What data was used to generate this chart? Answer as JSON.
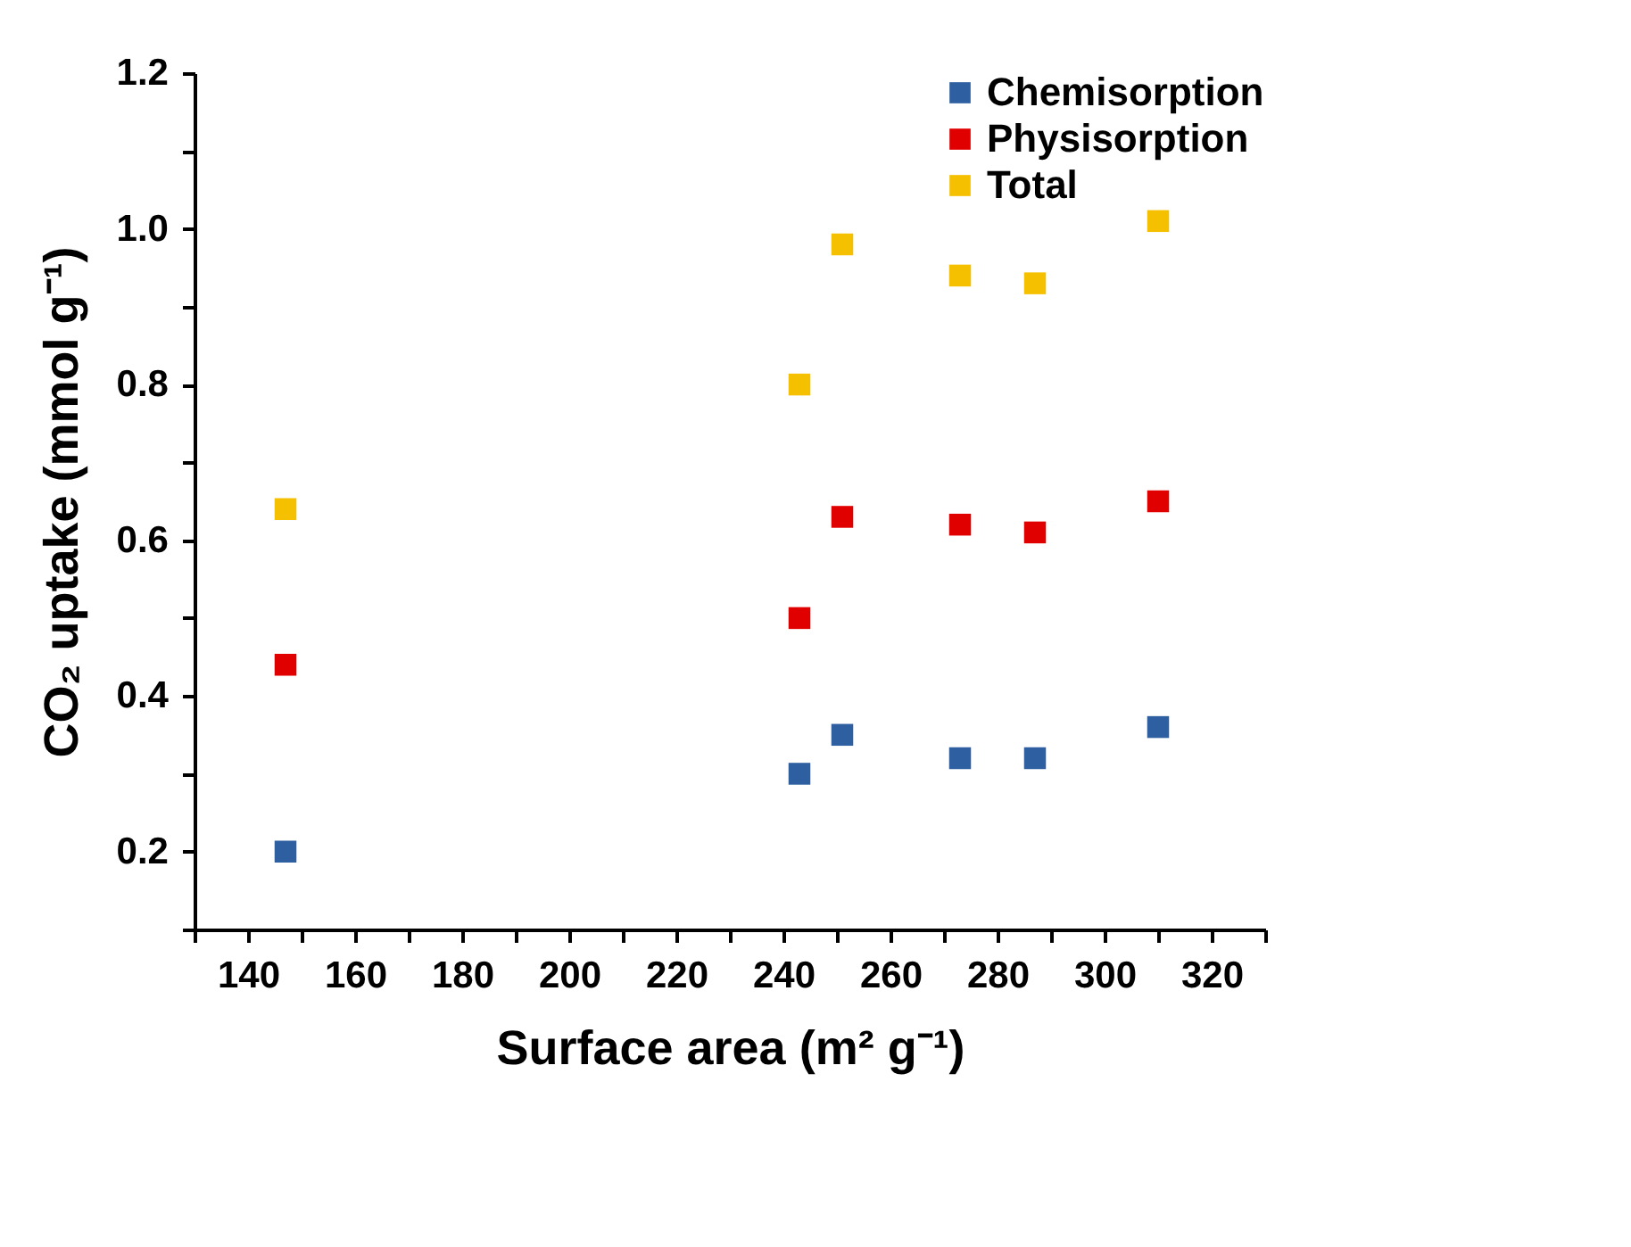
{
  "chart_data": {
    "type": "scatter",
    "xlabel": "Surface area (m² g⁻¹)",
    "ylabel": "CO₂ uptake (mmol g⁻¹)",
    "x": [
      147,
      243,
      251,
      273,
      287,
      310
    ],
    "series": [
      {
        "name": "Chemisorption",
        "color": "#2e5fa0",
        "values": [
          0.2,
          0.3,
          0.35,
          0.32,
          0.32,
          0.36
        ]
      },
      {
        "name": "Physisorption",
        "color": "#e00000",
        "values": [
          0.44,
          0.5,
          0.63,
          0.62,
          0.61,
          0.65
        ]
      },
      {
        "name": "Total",
        "color": "#f5c000",
        "values": [
          0.64,
          0.8,
          0.98,
          0.94,
          0.93,
          1.01
        ]
      }
    ],
    "xlim": [
      130,
      330
    ],
    "xticks": [
      {
        "value": 130,
        "label": null
      },
      140,
      {
        "value": 150,
        "label": null
      },
      160,
      {
        "value": 170,
        "label": null
      },
      180,
      {
        "value": 190,
        "label": null
      },
      200,
      {
        "value": 210,
        "label": null
      },
      220,
      {
        "value": 230,
        "label": null
      },
      240,
      {
        "value": 250,
        "label": null
      },
      260,
      {
        "value": 270,
        "label": null
      },
      280,
      {
        "value": 290,
        "label": null
      },
      300,
      {
        "value": 310,
        "label": null
      },
      320,
      {
        "value": 330,
        "label": null
      }
    ],
    "ylim": [
      0.1,
      1.2
    ],
    "yticks": [
      {
        "value": 0.1,
        "label": null
      },
      {
        "value": 0.2,
        "label": "0.2"
      },
      {
        "value": 0.3,
        "label": null
      },
      {
        "value": 0.4,
        "label": "0.4"
      },
      {
        "value": 0.5,
        "label": null
      },
      {
        "value": 0.6,
        "label": "0.6"
      },
      {
        "value": 0.7,
        "label": null
      },
      {
        "value": 0.8,
        "label": "0.8"
      },
      {
        "value": 0.9,
        "label": null
      },
      {
        "value": 1.0,
        "label": "1.0"
      },
      {
        "value": 1.1,
        "label": null
      },
      {
        "value": 1.2,
        "label": "1.2"
      }
    ],
    "grid": false,
    "legend": "top right",
    "marker": "square"
  }
}
